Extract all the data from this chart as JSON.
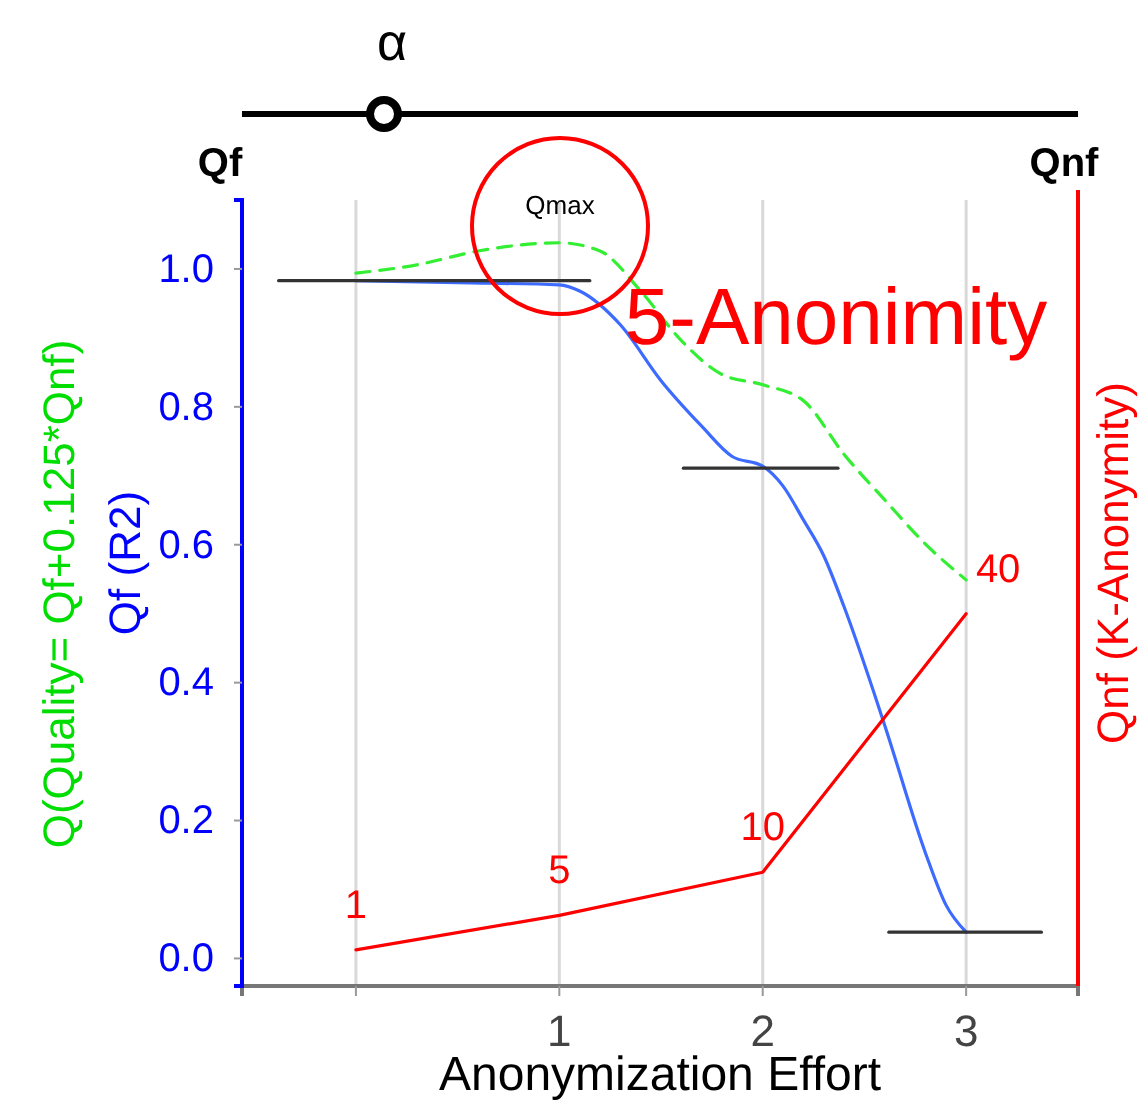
{
  "chart_data": {
    "type": "line",
    "xlabel": "Anonymization Effort",
    "ylabel": "Qf (R2)",
    "y2label": "Qnf (K-Anonymity)",
    "xlim": [
      -0.56,
      3.55
    ],
    "ylim": [
      -0.04,
      1.1
    ],
    "xticks": [
      {
        "value": 0,
        "label": null
      },
      1,
      2,
      3
    ],
    "yticks": [
      {
        "value": 0,
        "label": "0.0"
      },
      {
        "value": 0.2,
        "label": "0.2"
      },
      {
        "value": 0.4,
        "label": "0.4"
      },
      {
        "value": 0.6,
        "label": "0.6"
      },
      {
        "value": 0.8,
        "label": "0.8"
      },
      {
        "value": 1,
        "label": "1.0"
      }
    ],
    "grid": "x",
    "y2lim": [
      -3.2,
      88
    ],
    "annotations": [
      "Q(Quality= Qf+0.125*Qnf)",
      "α",
      "Qf",
      "Qnf",
      "5-Anonimity",
      "Qmax"
    ],
    "series": [
      {
        "color": "#3d6bff",
        "x": [
          0,
          0.5,
          1,
          1.1,
          1.3,
          1.5,
          1.7,
          1.85,
          2,
          2.1,
          2.2,
          2.3,
          2.4,
          2.6,
          2.8,
          2.9,
          3
        ],
        "values": [
          0.983,
          0.98,
          0.977,
          0.968,
          0.919,
          0.838,
          0.772,
          0.728,
          0.714,
          0.685,
          0.636,
          0.584,
          0.51,
          0.338,
          0.153,
          0.078,
          0.038
        ]
      },
      {
        "color": "#33ee33",
        "line_style": "dashed",
        "x": [
          0,
          0.3,
          0.6,
          1,
          1.2,
          1.4,
          1.6,
          1.8,
          2,
          2.2,
          2.4,
          2.6,
          2.8,
          3
        ],
        "values": [
          0.994,
          1.006,
          1.026,
          1.038,
          1.026,
          0.968,
          0.896,
          0.847,
          0.832,
          0.809,
          0.731,
          0.665,
          0.601,
          0.549
        ]
      },
      {
        "color": "#ff0000",
        "axis": "y2",
        "x": [
          0,
          1,
          2,
          3
        ],
        "values": [
          1,
          5,
          10,
          40
        ],
        "value_labels": [
          "1",
          "5",
          "10",
          "40"
        ]
      },
      {
        "color": "#333333",
        "x": [
          -0.38,
          1.15
        ],
        "values": [
          0.983,
          0.983
        ]
      },
      {
        "color": "#333333",
        "x": [
          1.61,
          2.37
        ],
        "values": [
          0.711,
          0.711
        ]
      },
      {
        "color": "#333333",
        "x": [
          2.62,
          3.37
        ],
        "values": [
          0.038,
          0.038
        ]
      }
    ]
  }
}
